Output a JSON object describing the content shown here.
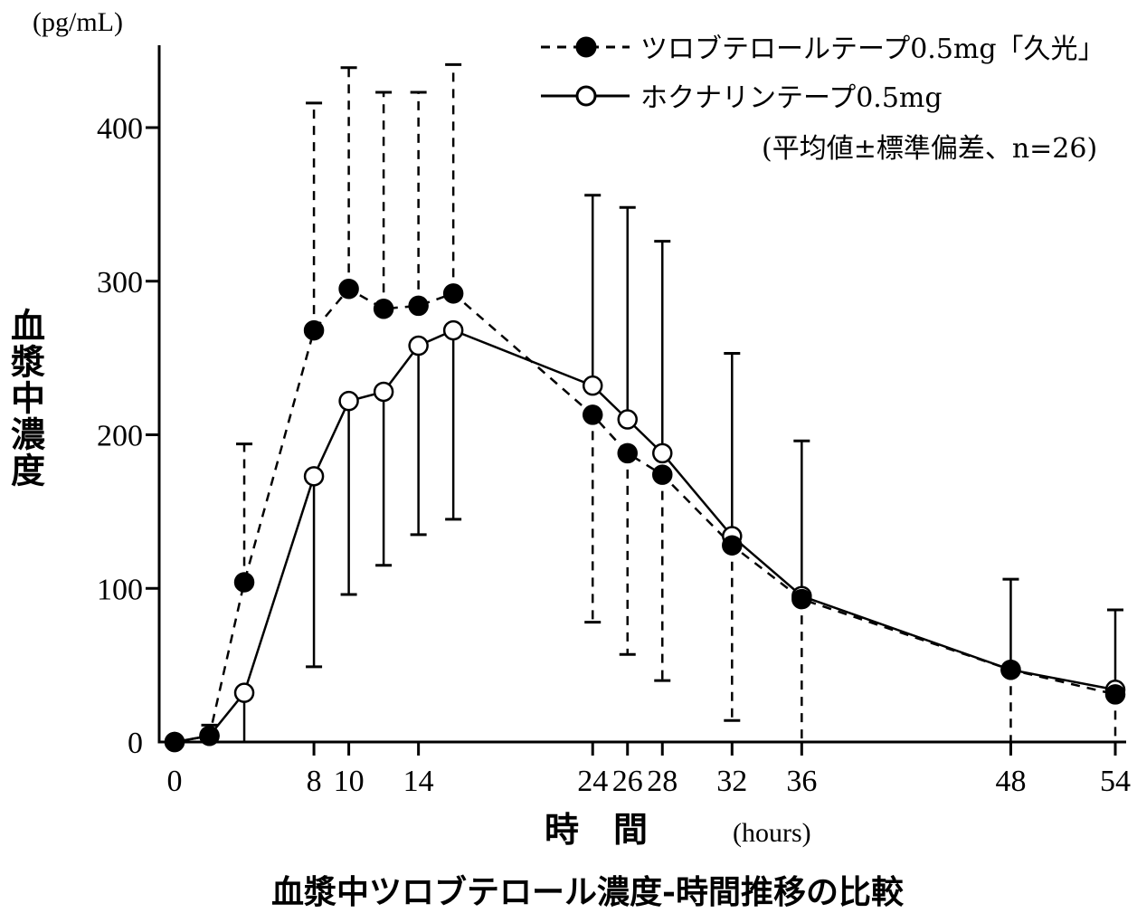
{
  "chart_data": {
    "type": "line",
    "title": "血漿中ツロブテロール濃度-時間推移の比較",
    "xlabel": "時　間",
    "xunit": "(hours)",
    "ylabel": "血漿中濃度",
    "yunit": "(pg/mL)",
    "xlim": [
      0,
      55
    ],
    "ylim": [
      0,
      450
    ],
    "xticks": [
      0,
      8,
      10,
      14,
      24,
      26,
      28,
      32,
      36,
      48,
      54
    ],
    "yticks": [
      0,
      100,
      200,
      300,
      400
    ],
    "grid": false,
    "legend_position": "top-right",
    "legend_note": "(平均値±標準偏差、n=26)",
    "x": [
      0,
      2,
      4,
      8,
      10,
      12,
      14,
      16,
      24,
      26,
      28,
      32,
      36,
      48,
      54
    ],
    "series": [
      {
        "name": "ツロブテロールテープ0.5mg「久光」",
        "line_style": "dashed",
        "marker": "filled-circle",
        "color": "#000000",
        "values": [
          0,
          4,
          104,
          268,
          295,
          282,
          284,
          292,
          213,
          188,
          174,
          128,
          93,
          47,
          31
        ],
        "sd_upper": [
          null,
          11,
          194,
          416,
          439,
          423,
          423,
          441,
          null,
          null,
          null,
          null,
          null,
          null,
          null
        ],
        "sd_lower": [
          null,
          null,
          null,
          null,
          null,
          null,
          null,
          null,
          78,
          57,
          40,
          14,
          0,
          0,
          0
        ]
      },
      {
        "name": "ホクナリンテープ0.5mg",
        "line_style": "solid",
        "marker": "open-circle",
        "color": "#000000",
        "values": [
          0,
          4,
          32,
          173,
          222,
          228,
          258,
          268,
          232,
          210,
          188,
          134,
          95,
          47,
          34
        ],
        "sd_upper": [
          null,
          null,
          null,
          null,
          null,
          null,
          null,
          null,
          356,
          348,
          326,
          253,
          196,
          106,
          86
        ],
        "sd_lower": [
          null,
          null,
          0,
          49,
          96,
          115,
          135,
          145,
          null,
          null,
          null,
          null,
          null,
          null,
          null
        ]
      }
    ]
  }
}
